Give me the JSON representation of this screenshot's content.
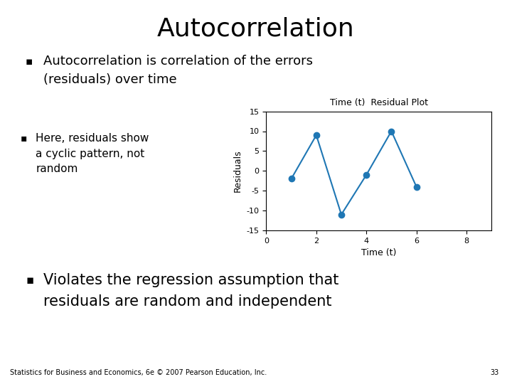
{
  "chart_data": {
    "type": "line",
    "title": "Time (t)  Residual Plot",
    "xlabel": "Time (t)",
    "ylabel": "Residuals",
    "x": [
      1,
      2,
      3,
      4,
      5,
      6
    ],
    "values": [
      -2,
      9,
      -11,
      -1,
      10,
      -4
    ],
    "marker": "o",
    "xlim": [
      0,
      9
    ],
    "xticks": [
      0,
      2,
      4,
      6,
      8
    ],
    "ylim": [
      -15,
      15
    ],
    "yticks": [
      -15,
      -10,
      -5,
      0,
      5,
      10,
      15
    ],
    "grid": false,
    "annotations": [
      "Autocorrelation",
      "▪",
      "Autocorrelation is correlation of the errors",
      "(residuals) over time",
      "▪",
      "Here, residuals show",
      "a cyclic pattern, not",
      "random",
      "▪",
      "Violates the regression assumption that",
      "residuals are random and independent",
      "Statistics for Business and Economics, 6e © 2007 Pearson Education, Inc.",
      "33"
    ]
  }
}
